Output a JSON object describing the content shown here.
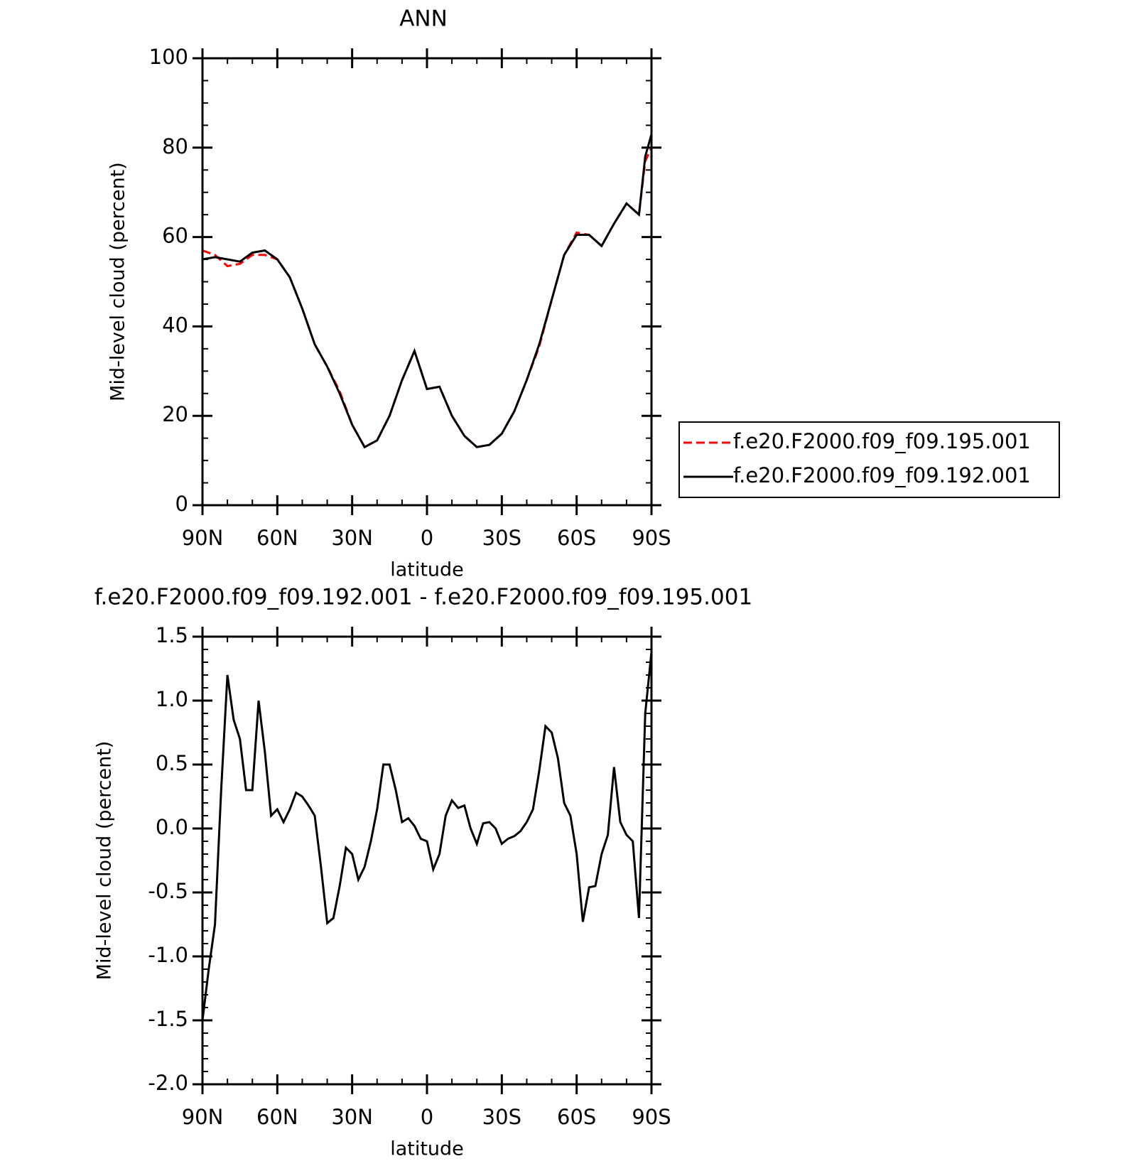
{
  "chart_data": [
    {
      "type": "line",
      "title": "ANN",
      "xlabel": "latitude",
      "ylabel": "Mid-level cloud (percent)",
      "x": [
        90,
        85,
        80,
        75,
        70,
        65,
        60,
        55,
        50,
        45,
        40,
        35,
        30,
        25,
        20,
        15,
        10,
        5,
        0,
        -5,
        -10,
        -15,
        -20,
        -25,
        -30,
        -35,
        -40,
        -45,
        -50,
        -55,
        -60,
        -65,
        -70,
        -75,
        -80,
        -85,
        -87.5,
        -90
      ],
      "series": [
        {
          "name": "f.e20.F2000.f09_f09.195.001",
          "color": "#ff0000",
          "dash": true,
          "values": [
            57,
            56,
            53.5,
            54,
            56,
            56,
            55,
            51,
            44,
            36,
            31,
            25.5,
            18,
            13,
            14.5,
            20,
            28,
            34.5,
            26,
            26.5,
            20,
            15.5,
            13,
            13.5,
            16,
            21,
            28,
            35.5,
            46,
            56,
            61,
            60.5,
            58,
            63,
            67.5,
            65,
            77,
            80
          ]
        },
        {
          "name": "f.e20.F2000.f09_f09.192.001",
          "color": "#000000",
          "dash": false,
          "values": [
            55,
            55.5,
            55,
            54.5,
            56.5,
            57,
            55,
            51,
            44,
            36,
            31,
            25,
            18,
            13,
            14.5,
            20,
            28,
            34.5,
            26,
            26.5,
            20,
            15.5,
            13,
            13.5,
            16,
            21,
            28,
            36,
            46,
            56,
            60.5,
            60.5,
            58,
            63,
            67.5,
            65,
            78,
            83
          ]
        }
      ],
      "xlim": [
        90,
        -90
      ],
      "xticks": [
        {
          "value": 90,
          "label": "90N"
        },
        {
          "value": 60,
          "label": "60N"
        },
        {
          "value": 30,
          "label": "30N"
        },
        0,
        {
          "value": -30,
          "label": "30S"
        },
        {
          "value": -60,
          "label": "60S"
        },
        {
          "value": -90,
          "label": "90S"
        }
      ],
      "xminorticks": [
        80,
        70,
        50,
        40,
        20,
        10,
        -10,
        -20,
        -40,
        -50,
        -70,
        -80
      ],
      "ylim": [
        0,
        100
      ],
      "yticks": [
        0,
        20,
        40,
        60,
        80,
        100
      ],
      "yminorticks": [
        5,
        10,
        15,
        25,
        30,
        35,
        45,
        50,
        55,
        65,
        70,
        75,
        85,
        90,
        95
      ],
      "legend": "right"
    },
    {
      "type": "line",
      "title": "f.e20.F2000.f09_f09.192.001 - f.e20.F2000.f09_f09.195.001",
      "xlabel": "latitude",
      "ylabel": "Mid-level cloud (percent)",
      "x": [
        90,
        87.5,
        85,
        82.5,
        80,
        77.5,
        75,
        72.5,
        70,
        67.5,
        65,
        62.5,
        60,
        57.5,
        55,
        52.5,
        50,
        47.5,
        45,
        42.5,
        40,
        37.5,
        35,
        32.5,
        30,
        27.5,
        25,
        22.5,
        20,
        17.5,
        15,
        12.5,
        10,
        7.5,
        5,
        2.5,
        0,
        -2.5,
        -5,
        -7.5,
        -10,
        -12.5,
        -15,
        -17.5,
        -20,
        -22.5,
        -25,
        -27.5,
        -30,
        -32.5,
        -35,
        -37.5,
        -40,
        -42.5,
        -45,
        -47.5,
        -50,
        -52.5,
        -55,
        -57.5,
        -60,
        -62.5,
        -65,
        -67.5,
        -70,
        -72.5,
        -75,
        -77.5,
        -80,
        -82.5,
        -85,
        -87.5,
        -90
      ],
      "values": [
        -1.5,
        -1.1,
        -0.75,
        0.3,
        1.2,
        0.85,
        0.7,
        0.3,
        0.3,
        1.0,
        0.6,
        0.1,
        0.15,
        0.05,
        0.15,
        0.28,
        0.25,
        0.18,
        0.1,
        -0.3,
        -0.74,
        -0.7,
        -0.45,
        -0.15,
        -0.2,
        -0.4,
        -0.3,
        -0.1,
        0.15,
        0.5,
        0.5,
        0.3,
        0.05,
        0.08,
        0.02,
        -0.08,
        -0.1,
        -0.32,
        -0.2,
        0.1,
        0.22,
        0.16,
        0.18,
        0.0,
        -0.12,
        0.04,
        0.05,
        0.0,
        -0.12,
        -0.08,
        -0.06,
        -0.02,
        0.05,
        0.15,
        0.45,
        0.8,
        0.75,
        0.55,
        0.2,
        0.1,
        -0.2,
        -0.73,
        -0.46,
        -0.45,
        -0.2,
        -0.05,
        0.48,
        0.05,
        -0.05,
        -0.1,
        -0.7,
        0.9,
        1.38
      ],
      "color": "#000000",
      "xlim": [
        90,
        -90
      ],
      "xticks": [
        {
          "value": 90,
          "label": "90N"
        },
        {
          "value": 60,
          "label": "60N"
        },
        {
          "value": 30,
          "label": "30N"
        },
        0,
        {
          "value": -30,
          "label": "30S"
        },
        {
          "value": -60,
          "label": "60S"
        },
        {
          "value": -90,
          "label": "90S"
        }
      ],
      "xminorticks": [
        80,
        70,
        50,
        40,
        20,
        10,
        -10,
        -20,
        -40,
        -50,
        -70,
        -80
      ],
      "ylim": [
        -2,
        1.5
      ],
      "yticks": [
        {
          "value": -2,
          "label": "-2.0"
        },
        -1.5,
        {
          "value": -1,
          "label": "-1.0"
        },
        -0.5,
        {
          "value": 0,
          "label": "0.0"
        },
        0.5,
        {
          "value": 1,
          "label": "1.0"
        },
        1.5
      ],
      "yminorticks": [
        -1.9,
        -1.8,
        -1.7,
        -1.6,
        -1.4,
        -1.3,
        -1.2,
        -1.1,
        -0.9,
        -0.8,
        -0.7,
        -0.6,
        -0.4,
        -0.3,
        -0.2,
        -0.1,
        0.1,
        0.2,
        0.3,
        0.4,
        0.6,
        0.7,
        0.8,
        0.9,
        1.1,
        1.2,
        1.3,
        1.4
      ]
    }
  ]
}
